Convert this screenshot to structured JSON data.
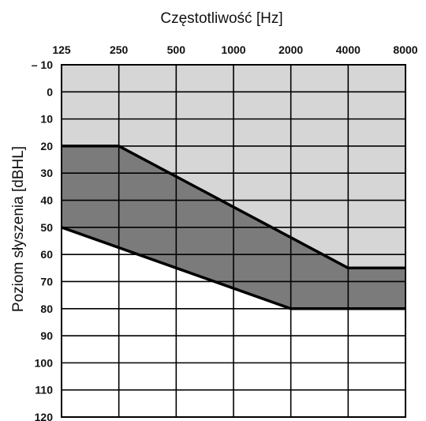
{
  "chart_data": {
    "type": "area",
    "xlabel": "Częstotliwość [Hz]",
    "ylabel": "Poziom słyszenia [dBHL]",
    "x_ticks": [
      "125",
      "250",
      "500",
      "1000",
      "2000",
      "4000",
      "8000"
    ],
    "y_ticks": [
      "– 10",
      "0",
      "10",
      "20",
      "30",
      "40",
      "50",
      "60",
      "70",
      "80",
      "90",
      "100",
      "110",
      "120"
    ],
    "x_scale": "log2",
    "y_range": [
      -10,
      120
    ],
    "y_inverted": true,
    "grid": true,
    "series": [
      {
        "role": "upper-boundary",
        "x": [
          125,
          250,
          4000,
          8000
        ],
        "y": [
          20,
          20,
          65,
          65
        ]
      },
      {
        "role": "lower-boundary",
        "x": [
          125,
          2000,
          8000
        ],
        "y": [
          50,
          80,
          80
        ]
      }
    ],
    "colors": {
      "above_region": "#d6d6d6",
      "band_region": "#7b7b7b",
      "below_region": "#ffffff",
      "lines": "#000000"
    }
  }
}
